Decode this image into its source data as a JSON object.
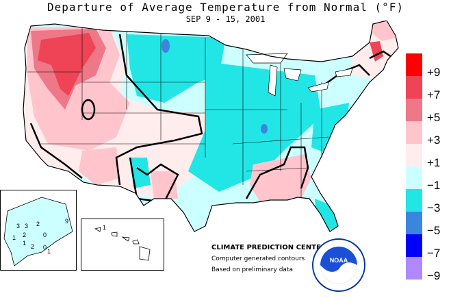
{
  "header": {
    "title": "Departure of Average Temperature from Normal (°F)",
    "date_range": "SEP 9 - 15, 2001"
  },
  "legend": {
    "entries": [
      {
        "label": "+9",
        "color": "#ff0000"
      },
      {
        "label": "+7",
        "color": "#ee4455"
      },
      {
        "label": "+5",
        "color": "#ee7788"
      },
      {
        "label": "+3",
        "color": "#ffc4cc"
      },
      {
        "label": "+1",
        "color": "#ffecec"
      },
      {
        "label": "−1",
        "color": "#ccffff"
      },
      {
        "label": "−3",
        "color": "#22e6e6"
      },
      {
        "label": "−5",
        "color": "#3a86de"
      },
      {
        "label": "−7",
        "color": "#0000ff"
      },
      {
        "label": "−9",
        "color": "#b088ff"
      }
    ]
  },
  "alaska_inset": {
    "contour_labels": [
      "3",
      "2",
      "9",
      "3",
      "2",
      "1",
      "0",
      "1",
      "2",
      "0",
      "1"
    ]
  },
  "hawaii_inset": {
    "contour_labels": [
      "1"
    ]
  },
  "credits": {
    "center": "CLIMATE PREDICTION CENTER, NOAA",
    "line2": "Computer generated contours",
    "line3": "Based on preliminary data",
    "logo_text": "NOAA"
  }
}
